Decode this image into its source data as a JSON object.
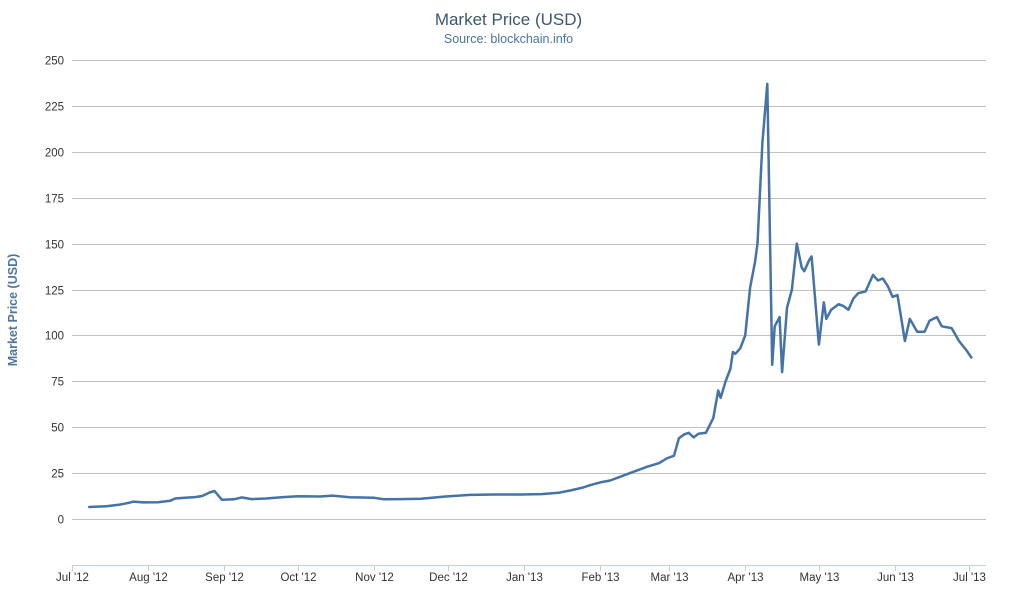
{
  "chart_data": {
    "type": "line",
    "title": "Market Price (USD)",
    "subtitle": "Source: blockchain.info",
    "ylabel": "Market Price (USD)",
    "xlabel": "",
    "ylim": [
      -25,
      250
    ],
    "yticks": [
      0,
      25,
      50,
      75,
      100,
      125,
      150,
      175,
      200,
      225,
      250
    ],
    "xlim": [
      "2012-07-01",
      "2013-07-08"
    ],
    "xticks": [
      {
        "date": "2012-07-01",
        "label": "Jul '12"
      },
      {
        "date": "2012-08-01",
        "label": "Aug '12"
      },
      {
        "date": "2012-09-01",
        "label": "Sep '12"
      },
      {
        "date": "2012-10-01",
        "label": "Oct '12"
      },
      {
        "date": "2012-11-01",
        "label": "Nov '12"
      },
      {
        "date": "2012-12-01",
        "label": "Dec '12"
      },
      {
        "date": "2013-01-01",
        "label": "Jan '13"
      },
      {
        "date": "2013-02-01",
        "label": "Feb '13"
      },
      {
        "date": "2013-03-01",
        "label": "Mar '13"
      },
      {
        "date": "2013-04-01",
        "label": "Apr '13"
      },
      {
        "date": "2013-05-01",
        "label": "May '13"
      },
      {
        "date": "2013-06-01",
        "label": "Jun '13"
      },
      {
        "date": "2013-07-01",
        "label": "Jul '13"
      }
    ],
    "grid": true,
    "legend": false,
    "series": [
      {
        "color": "#4572a7",
        "points": [
          [
            "2012-07-08",
            6.6
          ],
          [
            "2012-07-15",
            7.0
          ],
          [
            "2012-07-20",
            7.8
          ],
          [
            "2012-07-24",
            8.8
          ],
          [
            "2012-07-26",
            9.5
          ],
          [
            "2012-07-30",
            9.1
          ],
          [
            "2012-08-05",
            9.2
          ],
          [
            "2012-08-10",
            10.0
          ],
          [
            "2012-08-12",
            11.2
          ],
          [
            "2012-08-16",
            11.6
          ],
          [
            "2012-08-20",
            12.0
          ],
          [
            "2012-08-23",
            12.6
          ],
          [
            "2012-08-26",
            14.5
          ],
          [
            "2012-08-28",
            15.3
          ],
          [
            "2012-08-31",
            10.5
          ],
          [
            "2012-09-05",
            10.8
          ],
          [
            "2012-09-08",
            11.8
          ],
          [
            "2012-09-12",
            10.9
          ],
          [
            "2012-09-18",
            11.2
          ],
          [
            "2012-09-25",
            12.0
          ],
          [
            "2012-10-01",
            12.4
          ],
          [
            "2012-10-10",
            12.3
          ],
          [
            "2012-10-15",
            12.8
          ],
          [
            "2012-10-22",
            11.9
          ],
          [
            "2012-11-01",
            11.6
          ],
          [
            "2012-11-05",
            10.8
          ],
          [
            "2012-11-12",
            10.9
          ],
          [
            "2012-11-20",
            11.1
          ],
          [
            "2012-11-30",
            12.3
          ],
          [
            "2012-12-10",
            13.2
          ],
          [
            "2012-12-20",
            13.4
          ],
          [
            "2012-12-31",
            13.4
          ],
          [
            "2013-01-08",
            13.6
          ],
          [
            "2013-01-15",
            14.3
          ],
          [
            "2013-01-20",
            15.6
          ],
          [
            "2013-01-25",
            17.2
          ],
          [
            "2013-01-28",
            18.5
          ],
          [
            "2013-02-01",
            20.0
          ],
          [
            "2013-02-05",
            21.0
          ],
          [
            "2013-02-10",
            23.5
          ],
          [
            "2013-02-15",
            26.0
          ],
          [
            "2013-02-20",
            28.5
          ],
          [
            "2013-02-25",
            30.5
          ],
          [
            "2013-02-28",
            33.0
          ],
          [
            "2013-03-03",
            34.5
          ],
          [
            "2013-03-05",
            44.0
          ],
          [
            "2013-03-07",
            46.0
          ],
          [
            "2013-03-09",
            47.0
          ],
          [
            "2013-03-11",
            44.5
          ],
          [
            "2013-03-13",
            46.5
          ],
          [
            "2013-03-16",
            47.0
          ],
          [
            "2013-03-19",
            55.0
          ],
          [
            "2013-03-21",
            70.0
          ],
          [
            "2013-03-22",
            66.0
          ],
          [
            "2013-03-24",
            75.0
          ],
          [
            "2013-03-26",
            82.0
          ],
          [
            "2013-03-27",
            91.0
          ],
          [
            "2013-03-28",
            90.0
          ],
          [
            "2013-03-30",
            93.0
          ],
          [
            "2013-04-01",
            100.0
          ],
          [
            "2013-04-03",
            126.0
          ],
          [
            "2013-04-05",
            140.0
          ],
          [
            "2013-04-06",
            150.0
          ],
          [
            "2013-04-08",
            205.0
          ],
          [
            "2013-04-10",
            237.0
          ],
          [
            "2013-04-12",
            84.0
          ],
          [
            "2013-04-13",
            105.0
          ],
          [
            "2013-04-15",
            110.0
          ],
          [
            "2013-04-16",
            80.0
          ],
          [
            "2013-04-18",
            115.0
          ],
          [
            "2013-04-20",
            125.0
          ],
          [
            "2013-04-22",
            150.0
          ],
          [
            "2013-04-24",
            137.0
          ],
          [
            "2013-04-25",
            135.0
          ],
          [
            "2013-04-27",
            141.0
          ],
          [
            "2013-04-28",
            143.0
          ],
          [
            "2013-05-01",
            95.0
          ],
          [
            "2013-05-03",
            118.0
          ],
          [
            "2013-05-04",
            109.0
          ],
          [
            "2013-05-06",
            114.0
          ],
          [
            "2013-05-09",
            117.0
          ],
          [
            "2013-05-11",
            116.0
          ],
          [
            "2013-05-13",
            114.0
          ],
          [
            "2013-05-15",
            120.0
          ],
          [
            "2013-05-17",
            123.0
          ],
          [
            "2013-05-20",
            124.0
          ],
          [
            "2013-05-23",
            133.0
          ],
          [
            "2013-05-25",
            130.0
          ],
          [
            "2013-05-27",
            131.0
          ],
          [
            "2013-05-29",
            127.0
          ],
          [
            "2013-05-31",
            121.0
          ],
          [
            "2013-06-02",
            122.0
          ],
          [
            "2013-06-05",
            97.0
          ],
          [
            "2013-06-07",
            109.0
          ],
          [
            "2013-06-10",
            102.0
          ],
          [
            "2013-06-13",
            102.0
          ],
          [
            "2013-06-15",
            108.0
          ],
          [
            "2013-06-18",
            110.0
          ],
          [
            "2013-06-20",
            105.0
          ],
          [
            "2013-06-24",
            104.0
          ],
          [
            "2013-06-27",
            97.0
          ],
          [
            "2013-06-30",
            92.0
          ],
          [
            "2013-07-02",
            88.0
          ]
        ]
      }
    ]
  }
}
